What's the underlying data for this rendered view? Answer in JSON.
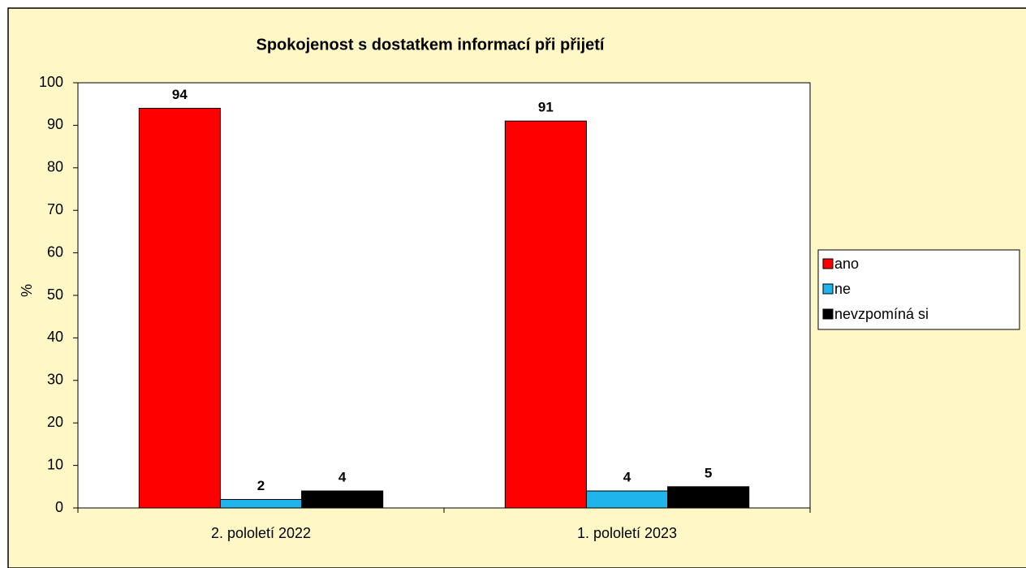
{
  "chart_data": {
    "type": "bar",
    "title": "Spokojenost s dostatkem informací při přijetí",
    "y_label": "%",
    "categories": [
      "2. pololetí 2022",
      "1. pololetí 2023"
    ],
    "series": [
      {
        "name": "ano",
        "color": "#ff0000",
        "values": [
          94,
          91
        ]
      },
      {
        "name": "ne",
        "color": "#1fb4ec",
        "values": [
          2,
          4
        ]
      },
      {
        "name": "nevzpomíná si",
        "color": "#000000",
        "values": [
          4,
          5
        ]
      }
    ],
    "ylim": [
      0,
      100
    ],
    "yticks": [
      0,
      10,
      20,
      30,
      40,
      50,
      60,
      70,
      80,
      90,
      100
    ],
    "grid": false,
    "legend": "right"
  }
}
